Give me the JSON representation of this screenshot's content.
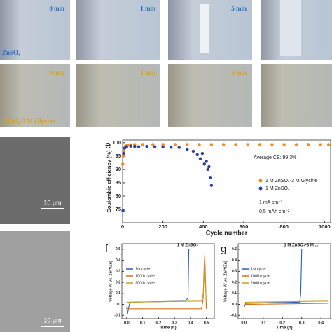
{
  "micrographs": {
    "znso4": {
      "label": "ZnSO₄",
      "times": [
        "0 min",
        "1 min",
        "5 min"
      ]
    },
    "glycine": {
      "label": "ZnSO₄-3 M Glycine",
      "times": [
        "0 min",
        "1 min",
        "5 min"
      ]
    },
    "sem_scale_bars": [
      "10 μm",
      "10 μm"
    ]
  },
  "chart_data": [
    {
      "type": "scatter",
      "panel_label": "e",
      "x_label": "Cycle number",
      "y_label": "Coulombic efficiency (%)",
      "xlim": [
        0,
        1030
      ],
      "ylim": [
        70,
        101
      ],
      "xticks": [
        0,
        200,
        400,
        600,
        800,
        1000
      ],
      "yticks": [
        75,
        80,
        85,
        90,
        95,
        100
      ],
      "annotations": [
        "Average CE: 99.3%",
        "1 mA cm⁻²",
        "0.5 mAh cm⁻²"
      ],
      "series": [
        {
          "name": "1 M ZnSO₄-3 M Glycine",
          "color": "#f08a24",
          "x": [
            1,
            3,
            6,
            10,
            15,
            25,
            40,
            60,
            100,
            150,
            200,
            260,
            320,
            380,
            440,
            500,
            560,
            620,
            680,
            740,
            800,
            860,
            920,
            980,
            1020
          ],
          "values": [
            92,
            95,
            97,
            98,
            98.8,
            99,
            99.2,
            99.3,
            99.3,
            99.3,
            99.3,
            99.3,
            99.3,
            99.3,
            99.3,
            99.3,
            99.3,
            99.3,
            99.3,
            99.3,
            99.3,
            99.3,
            99.3,
            99.3,
            99.3
          ]
        },
        {
          "name": "1 M ZnSO₄",
          "color": "#2f3f9e",
          "x": [
            2,
            5,
            10,
            20,
            40,
            60,
            80,
            120,
            160,
            200,
            240,
            280,
            320,
            350,
            370,
            385,
            395,
            405,
            415,
            422,
            428,
            434,
            440
          ],
          "values": [
            74.5,
            96,
            98,
            98.5,
            98.7,
            98.6,
            98.5,
            98.6,
            98.5,
            98.4,
            98.3,
            98.2,
            97.5,
            96.8,
            95.5,
            94,
            96,
            92,
            93,
            90,
            91,
            87,
            84
          ]
        }
      ]
    },
    {
      "type": "line",
      "panel_label": "f",
      "title": "1 M ZnSO₄",
      "x_label": "Time (h)",
      "y_label": "Voltage (V vs. Zn²⁺/Zn)",
      "xlim": [
        -0.03,
        0.55
      ],
      "ylim": [
        -0.13,
        0.55
      ],
      "xticks": [
        {
          "value": 0,
          "label": "0.0"
        },
        0.1,
        0.2,
        0.3,
        0.4,
        0.5
      ],
      "yticks": [
        -0.1,
        {
          "value": 0,
          "label": "0.0"
        },
        0.1,
        0.2,
        0.3,
        0.4,
        0.5
      ],
      "series": [
        {
          "name": "1st cycle",
          "color": "#2a5fb8",
          "x": [
            0,
            0.005,
            0.01,
            0.02,
            0.37,
            0.385,
            0.39
          ],
          "values": [
            -0.02,
            -0.09,
            -0.05,
            0.02,
            0.03,
            0.06,
            0.5
          ]
        },
        {
          "name": "100th cycle",
          "color": "#d8701a",
          "x": [
            0,
            0.01,
            0.47,
            0.48,
            0.485,
            0.49,
            0.5
          ],
          "values": [
            -0.03,
            -0.04,
            -0.04,
            0.05,
            0.3,
            0.45,
            -0.04
          ]
        },
        {
          "name": "200th cycle",
          "color": "#c8a020",
          "x": [
            0,
            0.01,
            0.47,
            0.48,
            0.485,
            0.49,
            0.5
          ],
          "values": [
            0.02,
            0.02,
            0.03,
            0.1,
            0.2,
            0.3,
            0.02
          ]
        }
      ]
    },
    {
      "type": "line",
      "panel_label": "g",
      "title": "1 M ZnSO₄-3 M ...",
      "x_label": "Time (h)",
      "y_label": "Voltage (V vs. Zn²⁺/Zn)",
      "xlim": [
        -0.03,
        0.45
      ],
      "ylim": [
        -0.13,
        0.55
      ],
      "xticks": [
        {
          "value": 0,
          "label": "0.0"
        },
        0.1,
        0.2,
        0.3,
        0.4
      ],
      "yticks": [
        -0.1,
        {
          "value": 0,
          "label": "0.0"
        },
        0.1,
        0.2,
        0.3,
        0.4,
        0.5
      ],
      "series": [
        {
          "name": "1st cycle",
          "color": "#2a5fb8",
          "x": [
            0,
            0.01,
            0.29,
            0.295,
            0.3
          ],
          "values": [
            -0.03,
            0.01,
            0.02,
            0.1,
            0.5
          ]
        },
        {
          "name": "100th cycle",
          "color": "#d8701a",
          "x": [
            0,
            0.01,
            0.44
          ],
          "values": [
            -0.02,
            0.0,
            0.01
          ]
        },
        {
          "name": "200th cycle",
          "color": "#c8a020",
          "x": [
            0,
            0.01,
            0.44
          ],
          "values": [
            0.01,
            0.02,
            0.03
          ]
        }
      ]
    }
  ]
}
